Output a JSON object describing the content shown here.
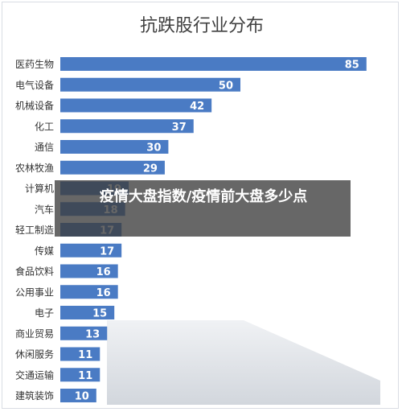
{
  "chart_data": {
    "type": "bar",
    "orientation": "horizontal",
    "title": "抗跌股行业分布",
    "categories": [
      "医药生物",
      "电气设备",
      "机械设备",
      "化工",
      "通信",
      "农林牧渔",
      "计算机",
      "汽车",
      "轻工制造",
      "传媒",
      "食品饮料",
      "公用事业",
      "电子",
      "商业贸易",
      "休闲服务",
      "交通运输",
      "建筑装饰"
    ],
    "values": [
      85,
      50,
      42,
      37,
      30,
      29,
      19,
      18,
      17,
      17,
      16,
      16,
      15,
      13,
      11,
      11,
      10
    ],
    "xlim": [
      0,
      100
    ],
    "grid": false,
    "legend": "none",
    "colors": {
      "bar": "#4a7bc4",
      "value_text": "#ffffff",
      "title": "#404040"
    }
  },
  "overlay": {
    "title": "疫情大盘指数/疫情前大盘多少点"
  }
}
